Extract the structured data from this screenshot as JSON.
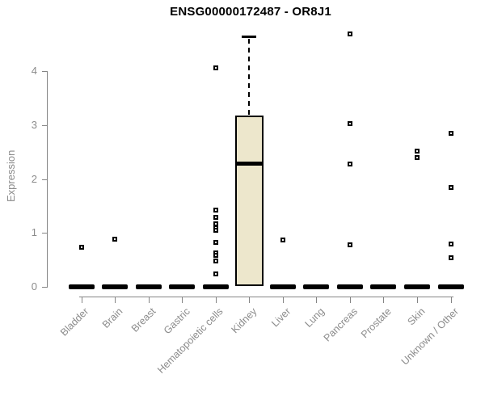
{
  "chart_data": {
    "type": "boxplot",
    "title": "ENSG00000172487 - OR8J1",
    "xlabel": "",
    "ylabel": "Expression",
    "ylim": [
      0,
      4.75
    ],
    "yticks": [
      0,
      1,
      2,
      3,
      4
    ],
    "grid": false,
    "legend": null,
    "categories": [
      "Bladder",
      "Brain",
      "Breast",
      "Gastric",
      "Hematopoietic cells",
      "Kidney",
      "Liver",
      "Lung",
      "Pancreas",
      "Prostate",
      "Skin",
      "Unknown / Other"
    ],
    "boxes": [
      {
        "category": "Bladder",
        "q1": 0,
        "median": 0,
        "q3": 0,
        "whisker_low": 0,
        "whisker_high": 0,
        "outliers": [
          0.73
        ]
      },
      {
        "category": "Brain",
        "q1": 0,
        "median": 0,
        "q3": 0,
        "whisker_low": 0,
        "whisker_high": 0,
        "outliers": [
          0.88
        ]
      },
      {
        "category": "Breast",
        "q1": 0,
        "median": 0,
        "q3": 0,
        "whisker_low": 0,
        "whisker_high": 0,
        "outliers": []
      },
      {
        "category": "Gastric",
        "q1": 0,
        "median": 0,
        "q3": 0,
        "whisker_low": 0,
        "whisker_high": 0,
        "outliers": []
      },
      {
        "category": "Hematopoietic cells",
        "q1": 0,
        "median": 0,
        "q3": 0,
        "whisker_low": 0,
        "whisker_high": 0,
        "outliers": [
          4.06,
          1.42,
          1.29,
          1.17,
          1.1,
          1.05,
          0.82,
          0.63,
          0.58,
          0.48,
          0.24
        ]
      },
      {
        "category": "Kidney",
        "q1": 0.02,
        "median": 2.28,
        "q3": 3.17,
        "whisker_low": 0.02,
        "whisker_high": 4.65,
        "outliers": []
      },
      {
        "category": "Liver",
        "q1": 0,
        "median": 0,
        "q3": 0,
        "whisker_low": 0,
        "whisker_high": 0,
        "outliers": [
          0.87
        ]
      },
      {
        "category": "Lung",
        "q1": 0,
        "median": 0,
        "q3": 0,
        "whisker_low": 0,
        "whisker_high": 0,
        "outliers": []
      },
      {
        "category": "Pancreas",
        "q1": 0,
        "median": 0,
        "q3": 0,
        "whisker_low": 0,
        "whisker_high": 0,
        "outliers": [
          4.69,
          3.03,
          2.28,
          0.78
        ]
      },
      {
        "category": "Prostate",
        "q1": 0,
        "median": 0,
        "q3": 0,
        "whisker_low": 0,
        "whisker_high": 0,
        "outliers": []
      },
      {
        "category": "Skin",
        "q1": 0,
        "median": 0,
        "q3": 0,
        "whisker_low": 0,
        "whisker_high": 0,
        "outliers": [
          2.52,
          2.4
        ]
      },
      {
        "category": "Unknown / Other",
        "q1": 0,
        "median": 0,
        "q3": 0,
        "whisker_low": 0,
        "whisker_high": 0,
        "outliers": [
          2.85,
          1.84,
          0.79,
          0.54
        ]
      }
    ],
    "style": {
      "box_fill": "#EDE7CC",
      "box_border": "#000000",
      "median_color": "#000000",
      "whisker_color": "#000000",
      "axis_color": "#858585",
      "tick_label_color": "#8B8B8B",
      "title_color": "#000000",
      "background": "#FFFFFF",
      "outlier_marker": "open-square"
    }
  }
}
